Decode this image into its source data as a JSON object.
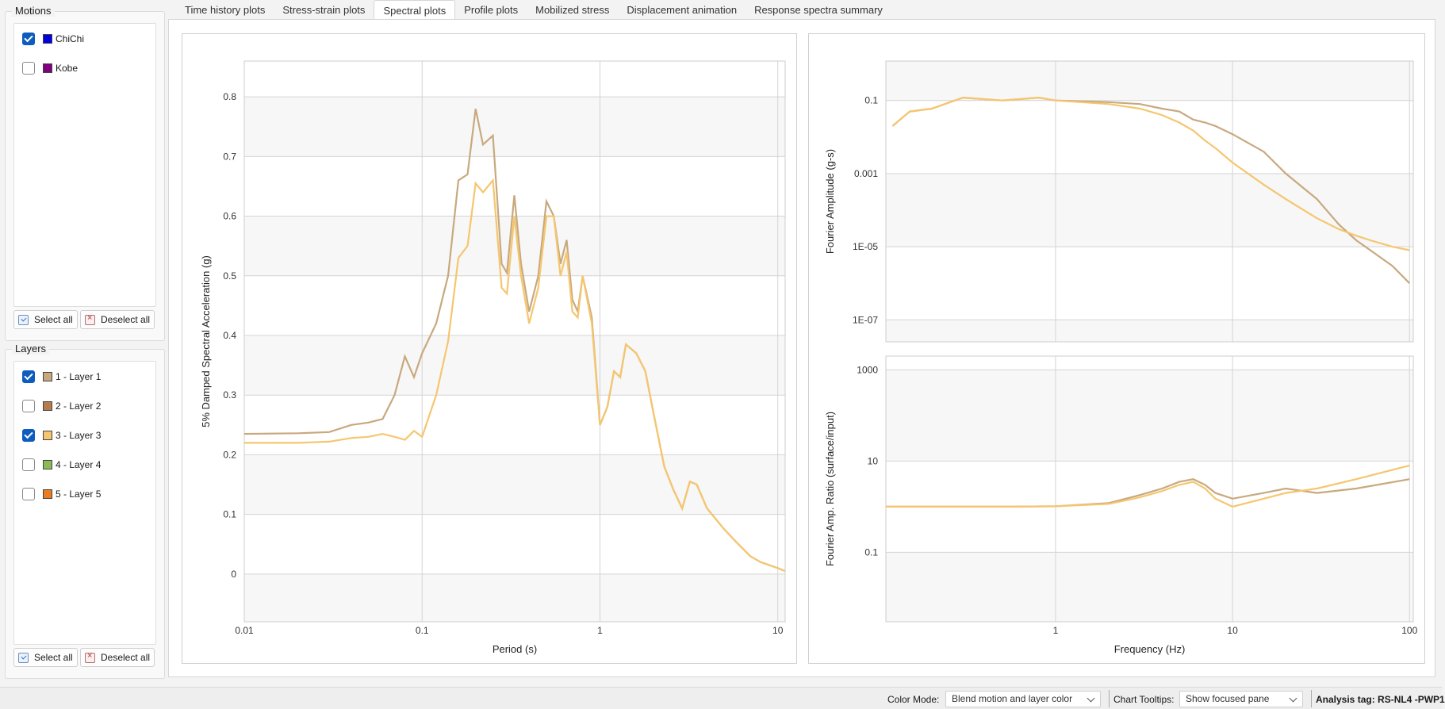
{
  "motions": {
    "title": "Motions",
    "items": [
      {
        "label": "ChiChi",
        "checked": true,
        "color": "#0000e0"
      },
      {
        "label": "Kobe",
        "checked": false,
        "color": "#800080"
      }
    ],
    "select_all": "Select all",
    "deselect_all": "Deselect all"
  },
  "layers": {
    "title": "Layers",
    "items": [
      {
        "label": "1 - Layer 1",
        "checked": true,
        "color": "#c8a97e"
      },
      {
        "label": "2 - Layer 2",
        "checked": false,
        "color": "#b87c4c"
      },
      {
        "label": "3 - Layer 3",
        "checked": true,
        "color": "#f5c66f"
      },
      {
        "label": "4 - Layer 4",
        "checked": false,
        "color": "#8bbb57"
      },
      {
        "label": "5 - Layer 5",
        "checked": false,
        "color": "#e87d22"
      }
    ],
    "select_all": "Select all",
    "deselect_all": "Deselect all"
  },
  "tabs": [
    {
      "label": "Time history plots"
    },
    {
      "label": "Stress-strain plots"
    },
    {
      "label": "Spectral plots",
      "active": true
    },
    {
      "label": "Profile plots"
    },
    {
      "label": "Mobilized stress"
    },
    {
      "label": "Displacement animation"
    },
    {
      "label": "Response spectra summary"
    }
  ],
  "statusbar": {
    "color_mode_label": "Color Mode:",
    "color_mode_value": "Blend motion and layer color",
    "tooltips_label": "Chart Tooltips:",
    "tooltips_value": "Show focused pane",
    "analysis_tag": "Analysis tag: RS-NL4 -PWP1"
  },
  "chart_data": [
    {
      "type": "line",
      "xlabel": "Period (s)",
      "ylabel": "5% Damped Spectral Acceleration (g)",
      "xscale": "log",
      "xlim": [
        0.01,
        11
      ],
      "ylim": [
        -0.08,
        0.86
      ],
      "xticks": [
        "0.01",
        "0.1",
        "1",
        "10"
      ],
      "yticks": [
        "0",
        "0.1",
        "0.2",
        "0.3",
        "0.4",
        "0.5",
        "0.6",
        "0.7",
        "0.8"
      ],
      "grid": true,
      "series": [
        {
          "color": "#c8a97e",
          "points": [
            [
              0.01,
              0.235
            ],
            [
              0.02,
              0.236
            ],
            [
              0.03,
              0.238
            ],
            [
              0.04,
              0.25
            ],
            [
              0.05,
              0.254
            ],
            [
              0.06,
              0.26
            ],
            [
              0.07,
              0.3
            ],
            [
              0.08,
              0.365
            ],
            [
              0.09,
              0.33
            ],
            [
              0.1,
              0.37
            ],
            [
              0.12,
              0.42
            ],
            [
              0.14,
              0.5
            ],
            [
              0.16,
              0.66
            ],
            [
              0.18,
              0.67
            ],
            [
              0.2,
              0.78
            ],
            [
              0.22,
              0.72
            ],
            [
              0.25,
              0.735
            ],
            [
              0.28,
              0.52
            ],
            [
              0.3,
              0.505
            ],
            [
              0.33,
              0.635
            ],
            [
              0.36,
              0.52
            ],
            [
              0.4,
              0.44
            ],
            [
              0.45,
              0.5
            ],
            [
              0.5,
              0.625
            ],
            [
              0.55,
              0.6
            ],
            [
              0.6,
              0.52
            ],
            [
              0.65,
              0.56
            ],
            [
              0.7,
              0.46
            ],
            [
              0.75,
              0.44
            ],
            [
              0.8,
              0.5
            ],
            [
              0.9,
              0.43
            ],
            [
              1.0,
              0.25
            ],
            [
              1.1,
              0.28
            ],
            [
              1.2,
              0.34
            ],
            [
              1.3,
              0.33
            ],
            [
              1.4,
              0.385
            ],
            [
              1.6,
              0.37
            ],
            [
              1.8,
              0.34
            ],
            [
              2.0,
              0.27
            ],
            [
              2.3,
              0.18
            ],
            [
              2.6,
              0.14
            ],
            [
              2.9,
              0.11
            ],
            [
              3.2,
              0.155
            ],
            [
              3.5,
              0.15
            ],
            [
              4.0,
              0.11
            ],
            [
              5.0,
              0.075
            ],
            [
              6.0,
              0.05
            ],
            [
              7.0,
              0.03
            ],
            [
              8.0,
              0.02
            ],
            [
              10.0,
              0.01
            ],
            [
              11.0,
              0.005
            ]
          ]
        },
        {
          "color": "#f5c66f",
          "points": [
            [
              0.01,
              0.22
            ],
            [
              0.02,
              0.22
            ],
            [
              0.03,
              0.222
            ],
            [
              0.04,
              0.228
            ],
            [
              0.05,
              0.23
            ],
            [
              0.06,
              0.235
            ],
            [
              0.07,
              0.23
            ],
            [
              0.08,
              0.225
            ],
            [
              0.09,
              0.24
            ],
            [
              0.1,
              0.23
            ],
            [
              0.12,
              0.3
            ],
            [
              0.14,
              0.39
            ],
            [
              0.16,
              0.53
            ],
            [
              0.18,
              0.55
            ],
            [
              0.2,
              0.655
            ],
            [
              0.22,
              0.64
            ],
            [
              0.25,
              0.66
            ],
            [
              0.28,
              0.48
            ],
            [
              0.3,
              0.47
            ],
            [
              0.33,
              0.6
            ],
            [
              0.36,
              0.5
            ],
            [
              0.4,
              0.42
            ],
            [
              0.45,
              0.48
            ],
            [
              0.5,
              0.6
            ],
            [
              0.55,
              0.6
            ],
            [
              0.6,
              0.5
            ],
            [
              0.65,
              0.54
            ],
            [
              0.7,
              0.44
            ],
            [
              0.75,
              0.43
            ],
            [
              0.8,
              0.5
            ],
            [
              0.9,
              0.42
            ],
            [
              1.0,
              0.25
            ],
            [
              1.1,
              0.28
            ],
            [
              1.2,
              0.34
            ],
            [
              1.3,
              0.33
            ],
            [
              1.4,
              0.385
            ],
            [
              1.6,
              0.37
            ],
            [
              1.8,
              0.34
            ],
            [
              2.0,
              0.27
            ],
            [
              2.3,
              0.18
            ],
            [
              2.6,
              0.14
            ],
            [
              2.9,
              0.11
            ],
            [
              3.2,
              0.155
            ],
            [
              3.5,
              0.15
            ],
            [
              4.0,
              0.11
            ],
            [
              5.0,
              0.075
            ],
            [
              6.0,
              0.05
            ],
            [
              7.0,
              0.03
            ],
            [
              8.0,
              0.02
            ],
            [
              10.0,
              0.01
            ],
            [
              11.0,
              0.005
            ]
          ]
        }
      ]
    },
    {
      "type": "line",
      "xlabel": "",
      "ylabel": "Fourier Amplitude (g-s)",
      "xscale": "log",
      "yscale": "log",
      "xlim": [
        0.11,
        105
      ],
      "ylim": [
        2.5e-08,
        1.2
      ],
      "yticks": [
        "0.1",
        "0.001",
        "1E-05",
        "1E-07"
      ],
      "grid": true,
      "series": [
        {
          "color": "#c8a97e",
          "points": [
            [
              0.12,
              0.02
            ],
            [
              0.15,
              0.05
            ],
            [
              0.2,
              0.06
            ],
            [
              0.3,
              0.12
            ],
            [
              0.5,
              0.1
            ],
            [
              0.8,
              0.12
            ],
            [
              1,
              0.1
            ],
            [
              2,
              0.09
            ],
            [
              3,
              0.08
            ],
            [
              4,
              0.06
            ],
            [
              5,
              0.05
            ],
            [
              6,
              0.03
            ],
            [
              7,
              0.025
            ],
            [
              8,
              0.02
            ],
            [
              10,
              0.012
            ],
            [
              15,
              0.004
            ],
            [
              20,
              0.001
            ],
            [
              30,
              0.0002
            ],
            [
              40,
              4e-05
            ],
            [
              50,
              1.5e-05
            ],
            [
              60,
              8e-06
            ],
            [
              80,
              3e-06
            ],
            [
              100,
              1e-06
            ]
          ]
        },
        {
          "color": "#f5c66f",
          "points": [
            [
              0.12,
              0.02
            ],
            [
              0.15,
              0.05
            ],
            [
              0.2,
              0.06
            ],
            [
              0.3,
              0.12
            ],
            [
              0.5,
              0.1
            ],
            [
              0.8,
              0.12
            ],
            [
              1,
              0.1
            ],
            [
              2,
              0.08
            ],
            [
              3,
              0.06
            ],
            [
              4,
              0.04
            ],
            [
              5,
              0.025
            ],
            [
              6,
              0.015
            ],
            [
              7,
              0.008
            ],
            [
              8,
              0.005
            ],
            [
              10,
              0.002
            ],
            [
              15,
              0.0005
            ],
            [
              20,
              0.0002
            ],
            [
              30,
              6e-05
            ],
            [
              40,
              3e-05
            ],
            [
              50,
              2e-05
            ],
            [
              60,
              1.5e-05
            ],
            [
              80,
              1e-05
            ],
            [
              100,
              8e-06
            ]
          ]
        }
      ]
    },
    {
      "type": "line",
      "xlabel": "Frequency (Hz)",
      "ylabel": "Fourier Amp. Ratio (surface/input)",
      "xscale": "log",
      "yscale": "log",
      "xlim": [
        0.11,
        105
      ],
      "ylim": [
        0.003,
        2000
      ],
      "xticks": [
        "1",
        "10",
        "100"
      ],
      "yticks": [
        "1000",
        "10",
        "0.1"
      ],
      "grid": true,
      "series": [
        {
          "color": "#c8a97e",
          "points": [
            [
              0.11,
              1.0
            ],
            [
              0.5,
              1.0
            ],
            [
              1,
              1.02
            ],
            [
              2,
              1.2
            ],
            [
              3,
              1.8
            ],
            [
              4,
              2.5
            ],
            [
              5,
              3.5
            ],
            [
              6,
              4
            ],
            [
              7,
              3
            ],
            [
              8,
              2
            ],
            [
              10,
              1.5
            ],
            [
              15,
              2
            ],
            [
              20,
              2.5
            ],
            [
              30,
              2
            ],
            [
              50,
              2.5
            ],
            [
              100,
              4
            ]
          ]
        },
        {
          "color": "#f5c66f",
          "points": [
            [
              0.11,
              1.0
            ],
            [
              0.5,
              1.0
            ],
            [
              1,
              1.02
            ],
            [
              2,
              1.15
            ],
            [
              3,
              1.6
            ],
            [
              4,
              2.2
            ],
            [
              5,
              3
            ],
            [
              6,
              3.5
            ],
            [
              7,
              2.5
            ],
            [
              8,
              1.5
            ],
            [
              10,
              1
            ],
            [
              15,
              1.5
            ],
            [
              20,
              2
            ],
            [
              30,
              2.5
            ],
            [
              50,
              4
            ],
            [
              100,
              8
            ]
          ]
        }
      ]
    }
  ]
}
